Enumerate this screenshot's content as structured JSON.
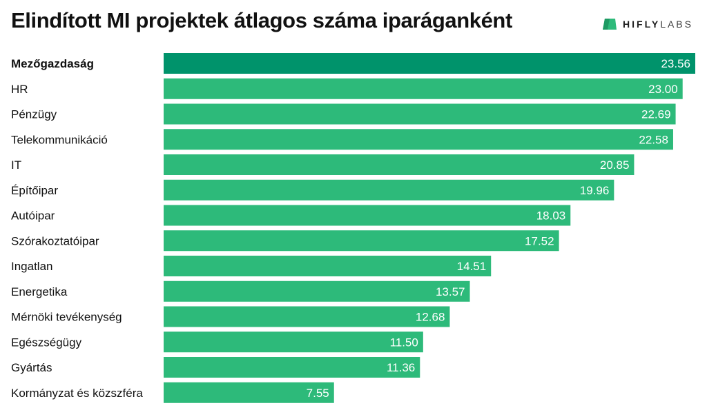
{
  "title": "Elindított MI projektek átlagos száma iparáganként",
  "brand": {
    "name_bold": "HIFLY",
    "name_light": "LABS",
    "icon": "hiflylabs-logo-icon"
  },
  "colors": {
    "bar": "#2dba7a",
    "bar_highlight": "#00936b",
    "value_text": "#ffffff",
    "label_text": "#111111"
  },
  "chart_data": {
    "type": "bar",
    "orientation": "horizontal",
    "title": "Elindított MI projektek átlagos száma iparáganként",
    "xlabel": "",
    "ylabel": "",
    "xlim": [
      0,
      23.56
    ],
    "grid": false,
    "highlight_category": "Mezőgazdaság",
    "categories": [
      "Mezőgazdaság",
      "HR",
      "Pénzügy",
      "Telekommunikáció",
      "IT",
      "Építőipar",
      "Autóipar",
      "Szórakoztatóipar",
      "Ingatlan",
      "Energetika",
      "Mérnöki tevékenység",
      "Egészségügy",
      "Gyártás",
      "Kormányzat és közszféra"
    ],
    "values": [
      23.56,
      23.0,
      22.69,
      22.58,
      20.85,
      19.96,
      18.03,
      17.52,
      14.51,
      13.57,
      12.68,
      11.5,
      11.36,
      7.55
    ],
    "value_labels": [
      "23.56",
      "23.00",
      "22.69",
      "22.58",
      "20.85",
      "19.96",
      "18.03",
      "17.52",
      "14.51",
      "13.57",
      "12.68",
      "11.50",
      "11.36",
      "7.55"
    ]
  }
}
